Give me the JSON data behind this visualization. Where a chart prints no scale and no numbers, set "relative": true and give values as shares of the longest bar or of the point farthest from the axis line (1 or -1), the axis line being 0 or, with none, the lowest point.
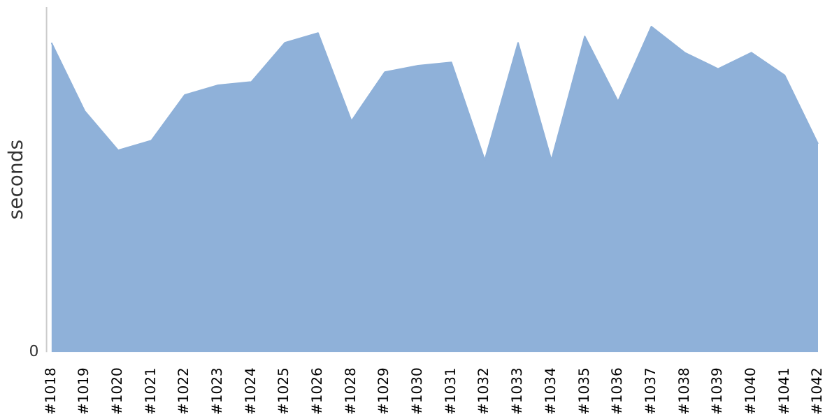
{
  "chart_data": {
    "type": "area",
    "ylabel": "seconds",
    "relative": true,
    "annotations": [
      "0"
    ],
    "legend": false,
    "categories": [
      "#1018",
      "#1019",
      "#1020",
      "#1021",
      "#1022",
      "#1023",
      "#1024",
      "#1025",
      "#1026",
      "#1028",
      "#1029",
      "#1030",
      "#1031",
      "#1032",
      "#1033",
      "#1034",
      "#1035",
      "#1036",
      "#1037",
      "#1038",
      "#1039",
      "#1040",
      "#1041",
      "#1042"
    ],
    "color": "#8fb1d9",
    "values": [
      0.95,
      0.74,
      0.62,
      0.65,
      0.79,
      0.82,
      0.83,
      0.95,
      0.98,
      0.71,
      0.86,
      0.88,
      0.89,
      0.59,
      0.95,
      0.59,
      0.97,
      0.77,
      1,
      0.92,
      0.87,
      0.92,
      0.85,
      0.64
    ]
  }
}
